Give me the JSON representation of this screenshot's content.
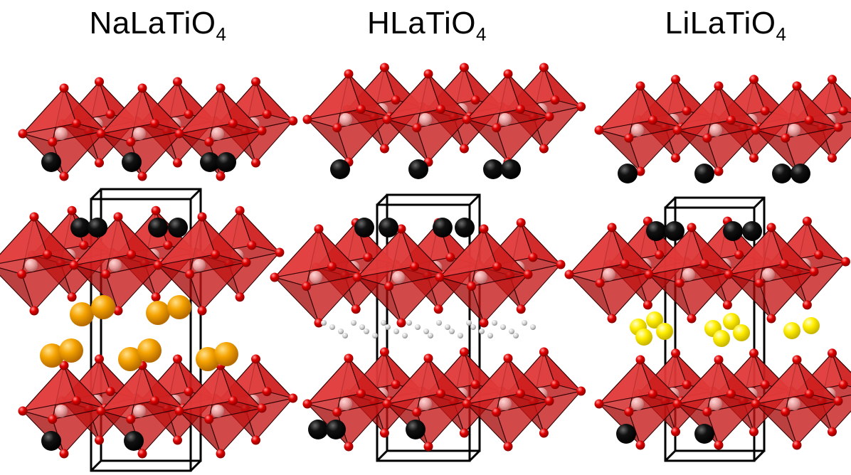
{
  "panels": [
    {
      "formula_main": "NaLaTiO",
      "formula_sub": "4",
      "interlayer_ion_color": "#f5a300"
    },
    {
      "formula_main": "HLaTiO",
      "formula_sub": "4",
      "interlayer_ion_color": "#d9d9d9"
    },
    {
      "formula_main": "LiLaTiO",
      "formula_sub": "4",
      "interlayer_ion_color": "#ffee00"
    }
  ],
  "colors": {
    "octahedron_fill": "#c81414",
    "oxygen": "#e00000",
    "titanium": "#f2a0a0",
    "lanthanum": "#000000",
    "unit_cell": "#000000"
  }
}
